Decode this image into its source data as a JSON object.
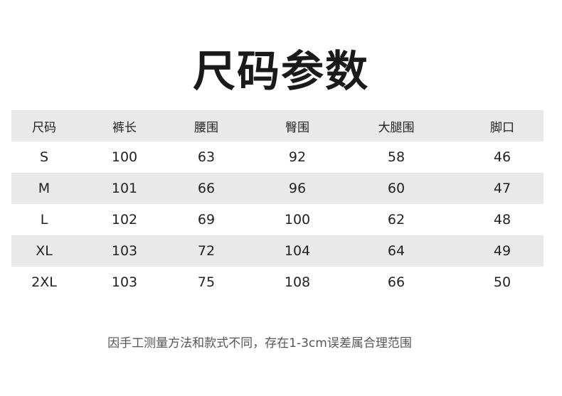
{
  "title": "尺码参数",
  "table": {
    "headers": [
      "尺码",
      "裤长",
      "腰围",
      "臀围",
      "大腿围",
      "脚口"
    ],
    "rows": [
      [
        "S",
        "100",
        "63",
        "92",
        "58",
        "46"
      ],
      [
        "M",
        "101",
        "66",
        "96",
        "60",
        "47"
      ],
      [
        "L",
        "102",
        "69",
        "100",
        "62",
        "48"
      ],
      [
        "XL",
        "103",
        "72",
        "104",
        "64",
        "49"
      ],
      [
        "2XL",
        "103",
        "75",
        "108",
        "66",
        "50"
      ]
    ]
  },
  "note": "因手工测量方法和款式不同，存在1-3cm误差属合理范围",
  "colors": {
    "stripe": "#e9e9e9",
    "text": "#222222",
    "note": "#555555"
  }
}
